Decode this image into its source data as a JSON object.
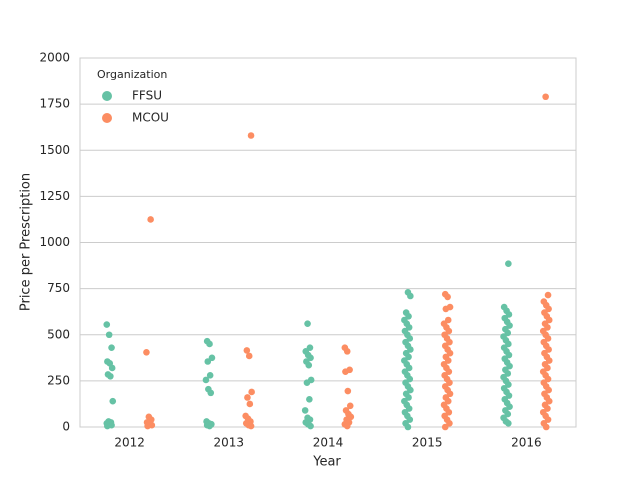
{
  "chart_data": {
    "type": "strip",
    "xlabel": "Year",
    "ylabel": "Price per Prescription",
    "categories": [
      "2012",
      "2013",
      "2014",
      "2015",
      "2016"
    ],
    "legend_title": "Organization",
    "legend": "upper left",
    "grid": true,
    "ylim": [
      0,
      2000
    ],
    "yticks": [
      0,
      250,
      500,
      750,
      1000,
      1250,
      1500,
      1750,
      2000
    ],
    "series": [
      {
        "name": "FFSU",
        "color": "#66c2a5",
        "values": [
          [
            555,
            500,
            430,
            355,
            345,
            320,
            285,
            275,
            140,
            30,
            25,
            20,
            15,
            10,
            5
          ],
          [
            465,
            450,
            375,
            355,
            280,
            255,
            205,
            185,
            30,
            20,
            15,
            10,
            5
          ],
          [
            560,
            430,
            410,
            390,
            375,
            355,
            335,
            255,
            240,
            150,
            90,
            50,
            40,
            25,
            15,
            5
          ],
          [
            730,
            710,
            620,
            600,
            580,
            560,
            540,
            520,
            500,
            480,
            460,
            440,
            420,
            400,
            380,
            360,
            340,
            320,
            300,
            280,
            260,
            240,
            220,
            200,
            180,
            160,
            140,
            120,
            100,
            80,
            60,
            40,
            20,
            0
          ],
          [
            885,
            650,
            630,
            610,
            590,
            570,
            550,
            530,
            510,
            490,
            470,
            450,
            430,
            410,
            390,
            370,
            350,
            330,
            310,
            290,
            270,
            250,
            230,
            210,
            190,
            170,
            150,
            130,
            110,
            90,
            70,
            50,
            30,
            20
          ]
        ]
      },
      {
        "name": "MCOU",
        "color": "#fc8d62",
        "values": [
          [
            1125,
            405,
            55,
            40,
            25,
            15,
            10,
            5
          ],
          [
            1580,
            415,
            385,
            190,
            160,
            125,
            60,
            45,
            30,
            20,
            10,
            5
          ],
          [
            430,
            410,
            310,
            300,
            195,
            115,
            90,
            70,
            55,
            40,
            25,
            15,
            5
          ],
          [
            720,
            705,
            650,
            640,
            580,
            560,
            540,
            520,
            500,
            480,
            460,
            440,
            420,
            400,
            380,
            360,
            340,
            320,
            300,
            280,
            260,
            240,
            220,
            200,
            180,
            160,
            140,
            120,
            100,
            80,
            60,
            40,
            20,
            0
          ],
          [
            1790,
            715,
            680,
            660,
            640,
            620,
            600,
            580,
            560,
            540,
            520,
            500,
            480,
            460,
            440,
            420,
            400,
            380,
            360,
            340,
            320,
            300,
            280,
            260,
            240,
            220,
            200,
            180,
            160,
            140,
            120,
            100,
            80,
            60,
            40,
            20,
            0
          ]
        ]
      }
    ]
  }
}
